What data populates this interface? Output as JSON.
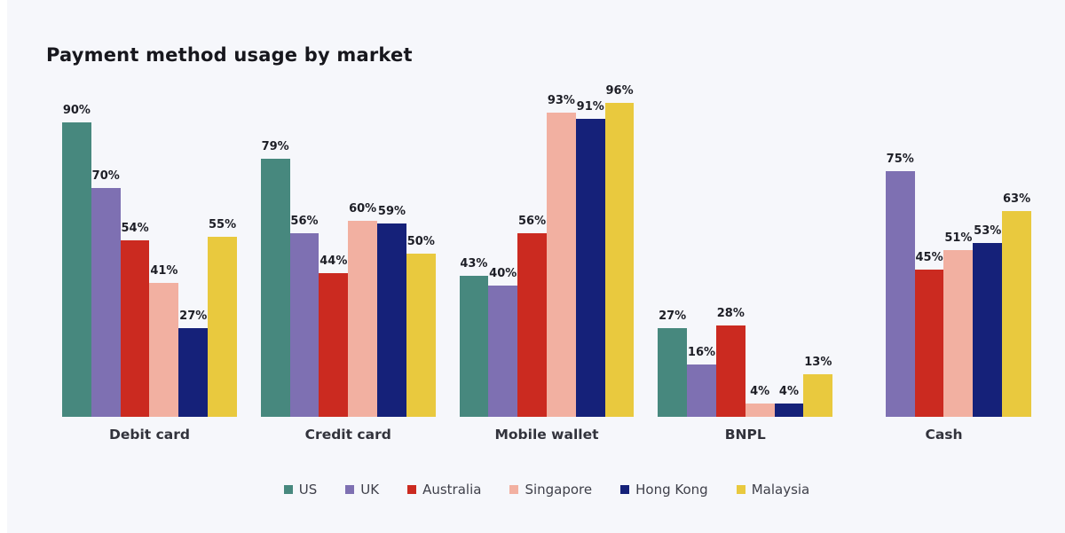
{
  "title": "Payment method usage by market",
  "chart_data": {
    "type": "bar",
    "title": "Payment method usage by market",
    "categories": [
      "Debit card",
      "Credit card",
      "Mobile wallet",
      "BNPL",
      "Cash"
    ],
    "series": [
      {
        "name": "US",
        "color": "#47887e",
        "values": [
          90,
          79,
          43,
          27,
          null
        ]
      },
      {
        "name": "UK",
        "color": "#7e70b2",
        "values": [
          70,
          56,
          40,
          16,
          75
        ]
      },
      {
        "name": "Australia",
        "color": "#cb2a20",
        "values": [
          54,
          44,
          56,
          28,
          45
        ]
      },
      {
        "name": "Singapore",
        "color": "#f2b0a1",
        "values": [
          41,
          60,
          93,
          4,
          51
        ]
      },
      {
        "name": "Hong Kong",
        "color": "#152179",
        "values": [
          27,
          59,
          91,
          4,
          53
        ]
      },
      {
        "name": "Malaysia",
        "color": "#e9c93e",
        "values": [
          55,
          50,
          96,
          13,
          63
        ]
      }
    ],
    "value_suffix": "%",
    "xlabel": "",
    "ylabel": "",
    "ylim": [
      0,
      100
    ],
    "grid": false,
    "data_labels": true,
    "legend_position": "bottom"
  },
  "style": {
    "background": "#f6f7fb",
    "title_color": "#17171d",
    "label_color": "#1d1e26",
    "category_color": "#32333c",
    "legend_text_color": "#3f404a"
  }
}
